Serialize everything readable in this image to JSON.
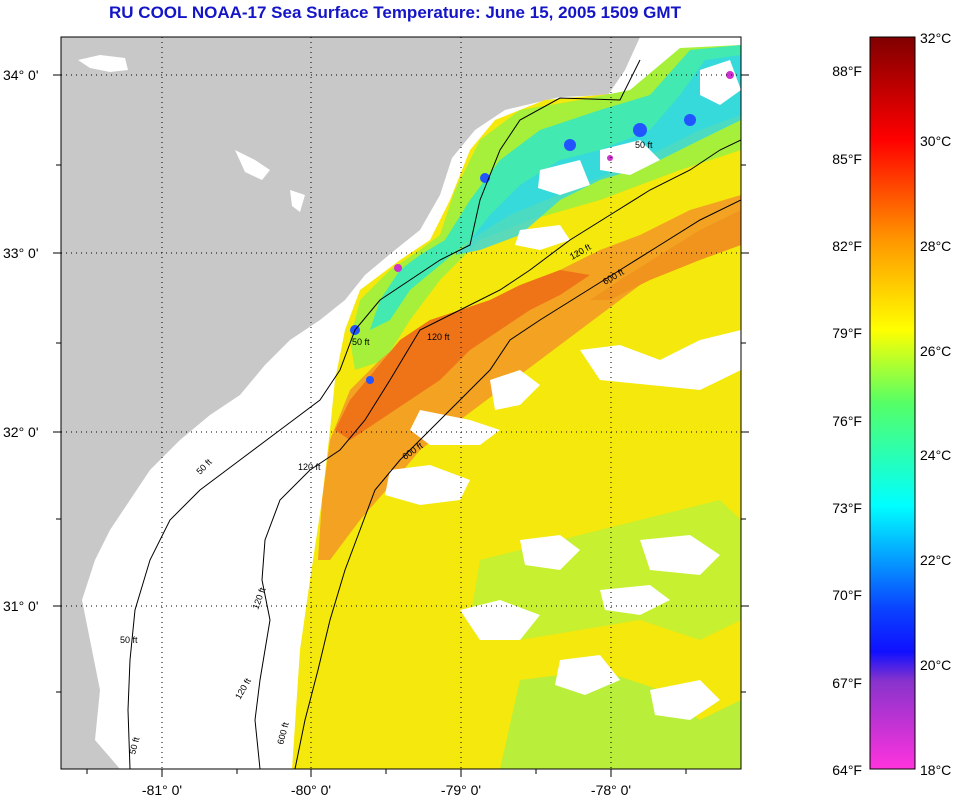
{
  "title": "RU COOL  NOAA-17  Sea Surface Temperature:  June 15, 2005 1509 GMT",
  "map": {
    "lat_labels": [
      "34° 0'",
      "33° 0'",
      "32° 0'",
      "31° 0'"
    ],
    "lon_labels": [
      "-81° 0'",
      "-80° 0'",
      "-79° 0'",
      "-78° 0'"
    ],
    "contour_labels": [
      "50 ft",
      "120 ft",
      "600 ft"
    ],
    "colors": {
      "land": "#c8c8c8",
      "background": "#ffffff",
      "grid": "#000000"
    }
  },
  "colorbar": {
    "fahrenheit": [
      "88°F",
      "85°F",
      "82°F",
      "79°F",
      "76°F",
      "73°F",
      "70°F",
      "67°F",
      "64°F"
    ],
    "celsius": [
      "32°C",
      "30°C",
      "28°C",
      "26°C",
      "24°C",
      "22°C",
      "20°C",
      "18°C"
    ]
  }
}
